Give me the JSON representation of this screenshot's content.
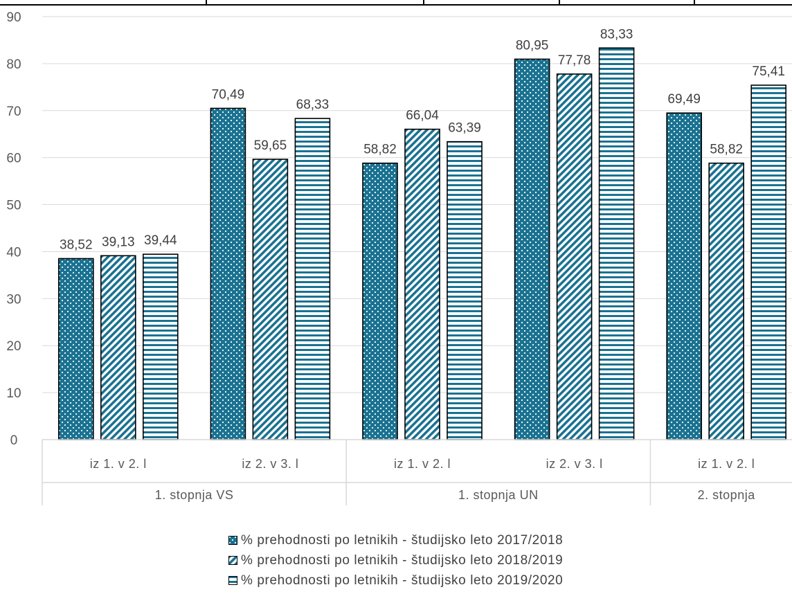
{
  "chart_data": {
    "type": "bar",
    "y_ticks": [
      "0",
      "10",
      "20",
      "30",
      "40",
      "50",
      "60",
      "70",
      "80",
      "90"
    ],
    "ylim": [
      0,
      90
    ],
    "grid": true,
    "legend_position": "bottom",
    "categories": [
      {
        "group": "1. stopnja VS",
        "label": "iz 1. v 2. l"
      },
      {
        "group": "1. stopnja VS",
        "label": "iz 2. v 3. l"
      },
      {
        "group": "1. stopnja UN",
        "label": "iz 1. v 2. l"
      },
      {
        "group": "1. stopnja UN",
        "label": "iz 2. v 3. l"
      },
      {
        "group": "2. stopnja",
        "label": "iz 1. v 2. l"
      }
    ],
    "groups": [
      "1. stopnja VS",
      "1. stopnja UN",
      "2. stopnja"
    ],
    "series": [
      {
        "name": "% prehodnosti po letnikih - študijsko leto 2017/2018",
        "values": [
          38.52,
          70.49,
          58.82,
          80.95,
          69.49
        ],
        "labels": [
          "38,52",
          "70,49",
          "58,82",
          "80,95",
          "69,49"
        ],
        "pattern": "dots",
        "color": "#1a7291"
      },
      {
        "name": "% prehodnosti po letnikih - študijsko leto 2018/2019",
        "values": [
          39.13,
          59.65,
          66.04,
          77.78,
          58.82
        ],
        "labels": [
          "39,13",
          "59,65",
          "66,04",
          "77,78",
          "58,82"
        ],
        "pattern": "diagonal",
        "color": "#1a7291"
      },
      {
        "name": "% prehodnosti po letnikih - študijsko leto 2019/2020",
        "values": [
          39.44,
          68.33,
          63.39,
          83.33,
          75.41
        ],
        "labels": [
          "39,44",
          "68,33",
          "63,39",
          "83,33",
          "75,41"
        ],
        "pattern": "horizontal",
        "color": "#1a7291"
      }
    ]
  }
}
